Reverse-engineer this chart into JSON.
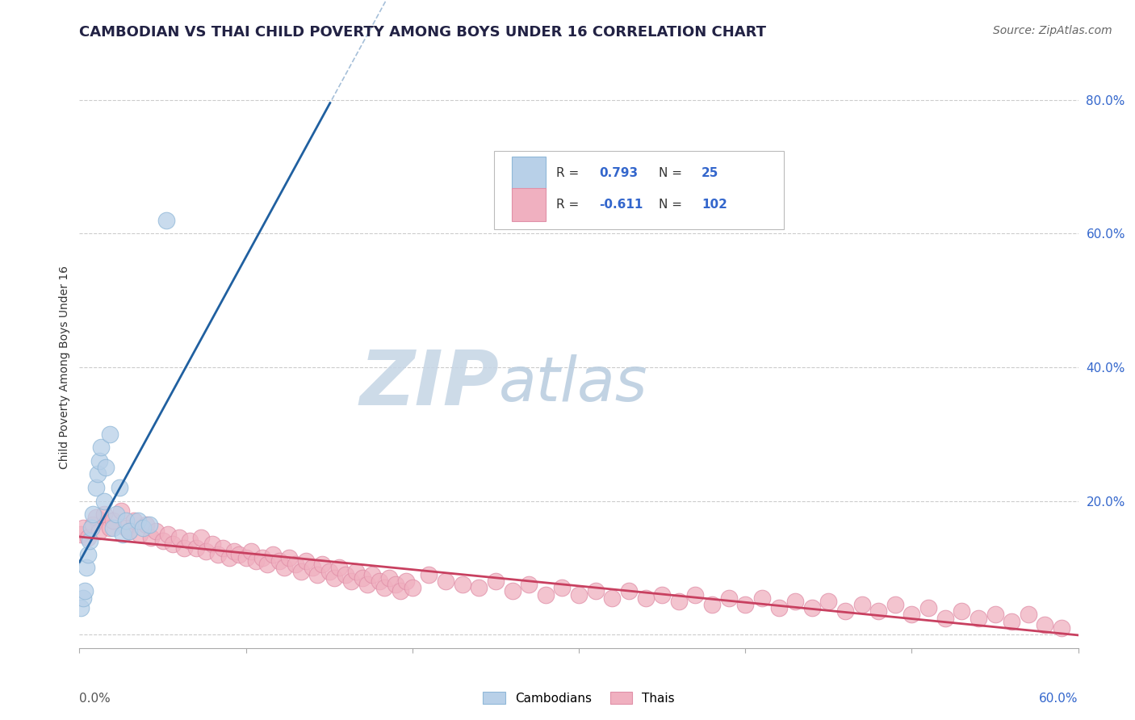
{
  "title": "CAMBODIAN VS THAI CHILD POVERTY AMONG BOYS UNDER 16 CORRELATION CHART",
  "source": "Source: ZipAtlas.com",
  "ylabel": "Child Poverty Among Boys Under 16",
  "xlim": [
    0.0,
    0.6
  ],
  "ylim": [
    -0.02,
    0.82
  ],
  "plot_ylim": [
    0.0,
    0.8
  ],
  "background_color": "#ffffff",
  "grid_color": "#cccccc",
  "watermark_ZIP": "ZIP",
  "watermark_atlas": "atlas",
  "watermark_color_ZIP": "#c8d8e8",
  "watermark_color_atlas": "#b8cce0",
  "series": [
    {
      "name": "Cambodians",
      "R": 0.793,
      "N": 25,
      "marker_color": "#b8d0e8",
      "edge_color": "#90b8d8",
      "line_color": "#2060a0"
    },
    {
      "name": "Thais",
      "R": -0.611,
      "N": 102,
      "marker_color": "#f0b0c0",
      "edge_color": "#e090a8",
      "line_color": "#c84060"
    }
  ],
  "legend_R_color": "#3366cc",
  "legend_N_color": "#3366cc",
  "legend_text_color": "#333333",
  "ytick_color": "#3366cc",
  "cambodian_x": [
    0.001,
    0.002,
    0.003,
    0.004,
    0.005,
    0.006,
    0.007,
    0.008,
    0.01,
    0.011,
    0.012,
    0.013,
    0.015,
    0.016,
    0.018,
    0.02,
    0.022,
    0.024,
    0.026,
    0.028,
    0.03,
    0.035,
    0.038,
    0.042,
    0.052
  ],
  "cambodian_y": [
    0.04,
    0.055,
    0.065,
    0.1,
    0.12,
    0.14,
    0.16,
    0.18,
    0.22,
    0.24,
    0.26,
    0.28,
    0.2,
    0.25,
    0.3,
    0.16,
    0.18,
    0.22,
    0.15,
    0.17,
    0.155,
    0.17,
    0.16,
    0.165,
    0.62
  ],
  "thai_x": [
    0.001,
    0.002,
    0.005,
    0.008,
    0.01,
    0.012,
    0.015,
    0.018,
    0.02,
    0.025,
    0.028,
    0.03,
    0.033,
    0.036,
    0.04,
    0.043,
    0.046,
    0.05,
    0.053,
    0.056,
    0.06,
    0.063,
    0.066,
    0.07,
    0.073,
    0.076,
    0.08,
    0.083,
    0.086,
    0.09,
    0.093,
    0.096,
    0.1,
    0.103,
    0.106,
    0.11,
    0.113,
    0.116,
    0.12,
    0.123,
    0.126,
    0.13,
    0.133,
    0.136,
    0.14,
    0.143,
    0.146,
    0.15,
    0.153,
    0.156,
    0.16,
    0.163,
    0.166,
    0.17,
    0.173,
    0.176,
    0.18,
    0.183,
    0.186,
    0.19,
    0.193,
    0.196,
    0.2,
    0.21,
    0.22,
    0.23,
    0.24,
    0.25,
    0.26,
    0.27,
    0.28,
    0.29,
    0.3,
    0.31,
    0.32,
    0.33,
    0.34,
    0.35,
    0.36,
    0.37,
    0.38,
    0.39,
    0.4,
    0.41,
    0.42,
    0.43,
    0.44,
    0.45,
    0.46,
    0.47,
    0.48,
    0.49,
    0.5,
    0.51,
    0.52,
    0.53,
    0.54,
    0.55,
    0.56,
    0.57,
    0.58,
    0.59
  ],
  "thai_y": [
    0.15,
    0.16,
    0.145,
    0.165,
    0.175,
    0.155,
    0.18,
    0.16,
    0.17,
    0.185,
    0.16,
    0.155,
    0.17,
    0.15,
    0.165,
    0.145,
    0.155,
    0.14,
    0.15,
    0.135,
    0.145,
    0.13,
    0.14,
    0.13,
    0.145,
    0.125,
    0.135,
    0.12,
    0.13,
    0.115,
    0.125,
    0.12,
    0.115,
    0.125,
    0.11,
    0.115,
    0.105,
    0.12,
    0.11,
    0.1,
    0.115,
    0.105,
    0.095,
    0.11,
    0.1,
    0.09,
    0.105,
    0.095,
    0.085,
    0.1,
    0.09,
    0.08,
    0.095,
    0.085,
    0.075,
    0.09,
    0.08,
    0.07,
    0.085,
    0.075,
    0.065,
    0.08,
    0.07,
    0.09,
    0.08,
    0.075,
    0.07,
    0.08,
    0.065,
    0.075,
    0.06,
    0.07,
    0.06,
    0.065,
    0.055,
    0.065,
    0.055,
    0.06,
    0.05,
    0.06,
    0.045,
    0.055,
    0.045,
    0.055,
    0.04,
    0.05,
    0.04,
    0.05,
    0.035,
    0.045,
    0.035,
    0.045,
    0.03,
    0.04,
    0.025,
    0.035,
    0.025,
    0.03,
    0.02,
    0.03,
    0.015,
    0.01
  ]
}
